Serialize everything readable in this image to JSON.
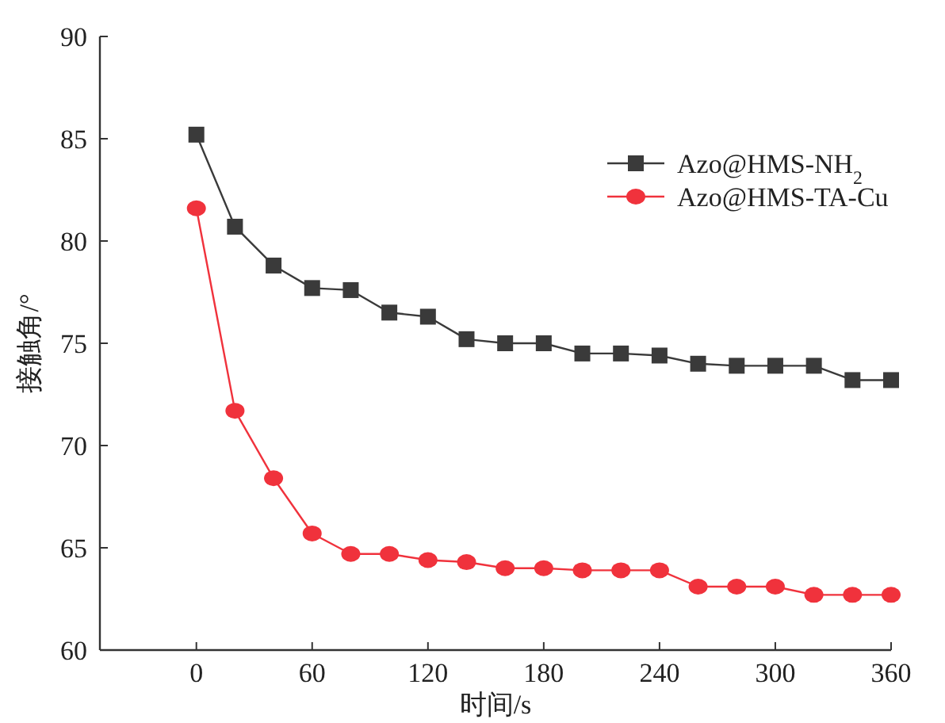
{
  "chart_data": {
    "type": "line",
    "xlabel": "时间/s",
    "ylabel": "接触角/°",
    "x": [
      0,
      20,
      40,
      60,
      80,
      100,
      120,
      140,
      160,
      180,
      200,
      220,
      240,
      260,
      280,
      300,
      320,
      340,
      360
    ],
    "series": [
      {
        "name": "Azo@HMS-NH$_{2}$",
        "color": "#3a3a3a",
        "marker": "square",
        "values": [
          85.2,
          80.7,
          78.8,
          77.7,
          77.6,
          76.5,
          76.3,
          75.2,
          75.0,
          75.0,
          74.5,
          74.5,
          74.4,
          74.0,
          73.9,
          73.9,
          73.9,
          73.2,
          73.2
        ]
      },
      {
        "name": "Azo@HMS-TA-Cu",
        "color": "#f0323c",
        "marker": "circle",
        "values": [
          81.6,
          71.7,
          68.4,
          65.7,
          64.7,
          64.7,
          64.4,
          64.3,
          64.0,
          64.0,
          63.9,
          63.9,
          63.9,
          63.1,
          63.1,
          63.1,
          62.7,
          62.7,
          62.7
        ]
      }
    ],
    "xlim": [
      -50,
      360
    ],
    "ylim": [
      60,
      90
    ],
    "xticks": [
      0,
      60,
      120,
      180,
      240,
      300,
      360
    ],
    "yticks": [
      60,
      65,
      70,
      75,
      80,
      85,
      90
    ],
    "grid": false,
    "legend": "top right",
    "line_style": "solid"
  }
}
